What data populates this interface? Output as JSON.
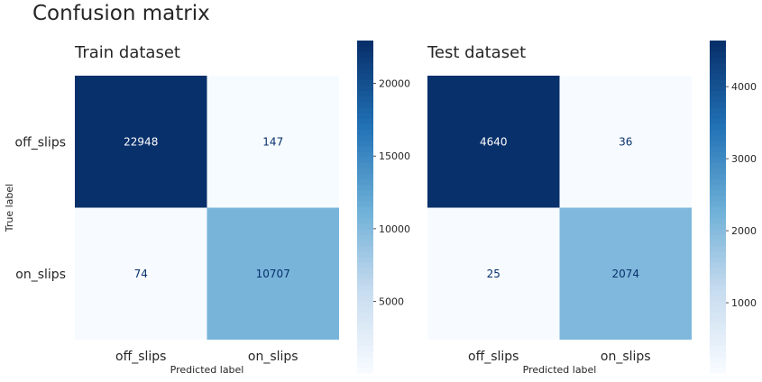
{
  "figure": {
    "title": "Confusion matrix"
  },
  "colors": {
    "cmap_low": "#f7fbff",
    "cmap_mid": "#6baed6",
    "cmap_high": "#08306b",
    "text_dark_cell": "#ffffff",
    "text_light_cell": "#08306b",
    "axis_text": "#262626"
  },
  "chart_data": [
    {
      "type": "heatmap",
      "title": "Train dataset",
      "xlabel": "Predicted label",
      "ylabel": "True label",
      "x_categories": [
        "off_slips",
        "on_slips"
      ],
      "y_categories": [
        "off_slips",
        "on_slips"
      ],
      "values": [
        [
          22948,
          147
        ],
        [
          74,
          10707
        ]
      ],
      "colorbar": {
        "ticks": [
          5000,
          10000,
          15000,
          20000
        ]
      }
    },
    {
      "type": "heatmap",
      "title": "Test dataset",
      "xlabel": "Predicted label",
      "ylabel": "",
      "x_categories": [
        "off_slips",
        "on_slips"
      ],
      "y_categories": [],
      "values": [
        [
          4640,
          36
        ],
        [
          25,
          2074
        ]
      ],
      "colorbar": {
        "ticks": [
          1000,
          2000,
          3000,
          4000
        ]
      }
    }
  ]
}
